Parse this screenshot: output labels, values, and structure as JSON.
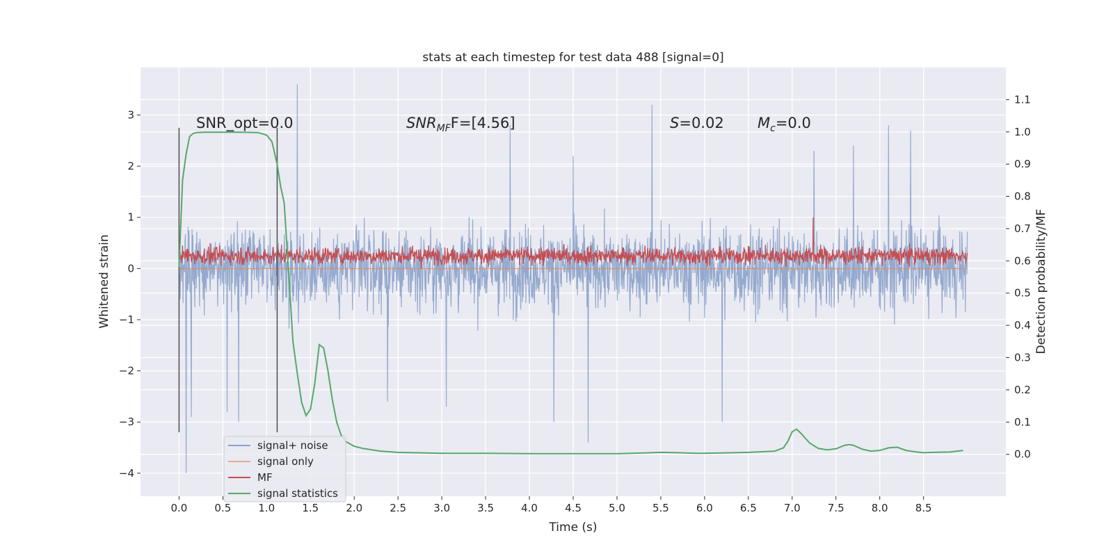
{
  "chart_data": {
    "type": "line",
    "title": "stats at each timestep for test data 488 [signal=0]",
    "xlabel": "Time (s)",
    "ylabel_left": "Whitened strain",
    "ylabel_right": "Detection probability/MF",
    "xlim": [
      -0.44,
      9.44
    ],
    "ylim_left": [
      -4.45,
      3.93
    ],
    "ylim_right": [
      -0.13,
      1.2
    ],
    "x_ticks": [
      "0.0",
      "0.5",
      "1.0",
      "1.5",
      "2.0",
      "2.5",
      "3.0",
      "3.5",
      "4.0",
      "4.5",
      "5.0",
      "5.5",
      "6.0",
      "6.5",
      "7.0",
      "7.5",
      "8.0",
      "8.5"
    ],
    "y_ticks_left": [
      "3",
      "2",
      "1",
      "0",
      "−1",
      "−2",
      "−3",
      "−4"
    ],
    "y_ticks_right": [
      "1.1",
      "1.0",
      "0.9",
      "0.8",
      "0.7",
      "0.6",
      "0.5",
      "0.4",
      "0.3",
      "0.2",
      "0.1",
      "0.0"
    ],
    "grid": true,
    "legend_position": "lower-left",
    "annotations": {
      "snr_opt": "SNR_opt=0.0",
      "snr_mf_prefix": "SNR",
      "snr_mf_sub": "MF",
      "snr_mf_suffix": "F=[4.56]",
      "s_label": "S",
      "s_value": "=0.02",
      "mc_label": "M",
      "mc_sub": "c",
      "mc_value": "=0.0"
    },
    "vertical_markers": [
      0.0,
      1.12
    ],
    "series": [
      {
        "name": "signal+ noise",
        "color": "#4c72b0",
        "axis": "left",
        "description": "dense whitened strain noise, approx range -2.0 to 2.0 with spikes",
        "x_range": [
          0.0,
          9.0
        ],
        "typical_band": [
          -1.6,
          1.6
        ],
        "spikes": [
          [
            0.08,
            -4.0
          ],
          [
            0.14,
            -2.9
          ],
          [
            0.55,
            -2.8
          ],
          [
            0.68,
            -3.0
          ],
          [
            1.35,
            3.6
          ],
          [
            3.05,
            -2.7
          ],
          [
            4.28,
            -3.0
          ],
          [
            4.67,
            -3.4
          ],
          [
            5.4,
            3.2
          ],
          [
            6.2,
            -3.0
          ],
          [
            3.78,
            2.8
          ],
          [
            7.25,
            2.3
          ],
          [
            8.35,
            2.7
          ],
          [
            8.1,
            2.8
          ],
          [
            7.7,
            2.4
          ],
          [
            2.38,
            -2.6
          ],
          [
            4.5,
            2.2
          ]
        ]
      },
      {
        "name": "signal only",
        "color": "#dd8452",
        "axis": "left",
        "x_range": [
          0.0,
          9.0
        ],
        "value": 0.0
      },
      {
        "name": "MF",
        "color": "#c44e52",
        "axis": "left",
        "x_range": [
          0.0,
          9.0
        ],
        "typical_band": [
          0.0,
          0.6
        ],
        "mean": 0.25,
        "spikes": [
          [
            7.24,
            1.0
          ]
        ]
      },
      {
        "name": "signal statistics",
        "color": "#55a868",
        "axis": "right",
        "x": [
          0.0,
          0.04,
          0.08,
          0.12,
          0.16,
          0.2,
          0.3,
          0.5,
          0.7,
          0.9,
          1.0,
          1.06,
          1.12,
          1.16,
          1.2,
          1.25,
          1.3,
          1.35,
          1.4,
          1.45,
          1.5,
          1.55,
          1.6,
          1.65,
          1.7,
          1.75,
          1.8,
          1.85,
          1.9,
          2.0,
          2.1,
          2.3,
          2.5,
          3.0,
          3.5,
          4.0,
          4.5,
          5.0,
          5.3,
          5.5,
          5.7,
          5.9,
          6.2,
          6.5,
          6.8,
          6.9,
          6.95,
          7.0,
          7.05,
          7.1,
          7.15,
          7.2,
          7.3,
          7.4,
          7.5,
          7.6,
          7.65,
          7.7,
          7.8,
          7.9,
          8.0,
          8.1,
          8.2,
          8.3,
          8.4,
          8.5,
          8.6,
          8.8,
          8.95
        ],
        "values": [
          0.58,
          0.85,
          0.93,
          0.985,
          0.995,
          0.998,
          0.999,
          0.999,
          0.999,
          0.998,
          0.99,
          0.97,
          0.9,
          0.83,
          0.78,
          0.57,
          0.35,
          0.25,
          0.16,
          0.12,
          0.14,
          0.22,
          0.34,
          0.33,
          0.26,
          0.17,
          0.1,
          0.06,
          0.04,
          0.025,
          0.018,
          0.01,
          0.006,
          0.003,
          0.003,
          0.002,
          0.002,
          0.002,
          0.004,
          0.006,
          0.005,
          0.003,
          0.004,
          0.006,
          0.01,
          0.02,
          0.04,
          0.07,
          0.078,
          0.065,
          0.05,
          0.035,
          0.018,
          0.014,
          0.017,
          0.028,
          0.03,
          0.028,
          0.016,
          0.01,
          0.012,
          0.02,
          0.022,
          0.012,
          0.008,
          0.005,
          0.006,
          0.007,
          0.012
        ]
      }
    ]
  }
}
